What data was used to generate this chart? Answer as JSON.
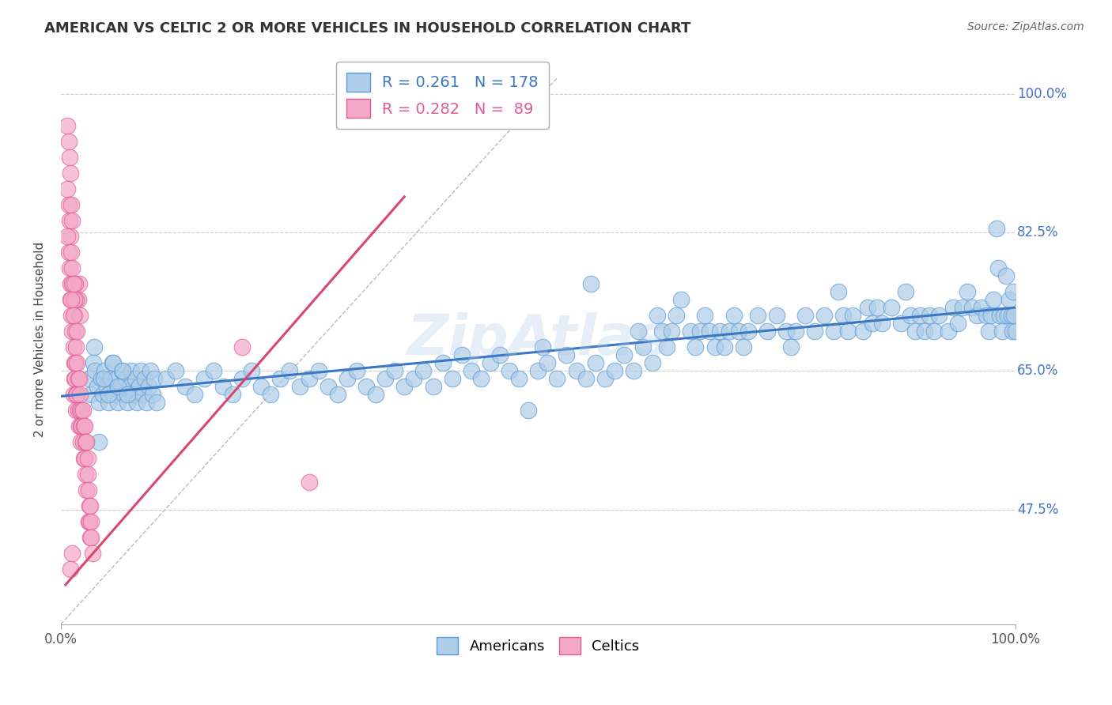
{
  "title": "AMERICAN VS CELTIC 2 OR MORE VEHICLES IN HOUSEHOLD CORRELATION CHART",
  "source": "Source: ZipAtlas.com",
  "ylabel": "2 or more Vehicles in Household",
  "xlim": [
    0,
    1.0
  ],
  "ylim": [
    0.33,
    1.05
  ],
  "y_ticks": [
    0.475,
    0.65,
    0.825,
    1.0
  ],
  "y_tick_labels": [
    "47.5%",
    "65.0%",
    "82.5%",
    "100.0%"
  ],
  "legend_blue_r": "R = 0.261",
  "legend_blue_n": "N = 178",
  "legend_pink_r": "R = 0.282",
  "legend_pink_n": "N =  89",
  "blue_color": "#aecde8",
  "pink_color": "#f4a8c7",
  "blue_edge_color": "#5b9bd5",
  "pink_edge_color": "#e05c96",
  "blue_line_color": "#3b78c3",
  "pink_line_color": "#d9476e",
  "watermark": "ZipAtlas",
  "blue_scatter": [
    [
      0.03,
      0.64
    ],
    [
      0.032,
      0.62
    ],
    [
      0.034,
      0.66
    ],
    [
      0.036,
      0.65
    ],
    [
      0.038,
      0.63
    ],
    [
      0.04,
      0.61
    ],
    [
      0.042,
      0.64
    ],
    [
      0.044,
      0.62
    ],
    [
      0.046,
      0.65
    ],
    [
      0.048,
      0.63
    ],
    [
      0.05,
      0.61
    ],
    [
      0.052,
      0.64
    ],
    [
      0.054,
      0.66
    ],
    [
      0.056,
      0.62
    ],
    [
      0.058,
      0.64
    ],
    [
      0.06,
      0.61
    ],
    [
      0.062,
      0.63
    ],
    [
      0.064,
      0.65
    ],
    [
      0.066,
      0.62
    ],
    [
      0.068,
      0.64
    ],
    [
      0.07,
      0.61
    ],
    [
      0.072,
      0.63
    ],
    [
      0.074,
      0.65
    ],
    [
      0.076,
      0.62
    ],
    [
      0.078,
      0.64
    ],
    [
      0.08,
      0.61
    ],
    [
      0.082,
      0.63
    ],
    [
      0.084,
      0.65
    ],
    [
      0.086,
      0.62
    ],
    [
      0.088,
      0.64
    ],
    [
      0.09,
      0.61
    ],
    [
      0.092,
      0.63
    ],
    [
      0.094,
      0.65
    ],
    [
      0.096,
      0.62
    ],
    [
      0.098,
      0.64
    ],
    [
      0.1,
      0.61
    ],
    [
      0.11,
      0.64
    ],
    [
      0.12,
      0.65
    ],
    [
      0.13,
      0.63
    ],
    [
      0.14,
      0.62
    ],
    [
      0.15,
      0.64
    ],
    [
      0.16,
      0.65
    ],
    [
      0.17,
      0.63
    ],
    [
      0.18,
      0.62
    ],
    [
      0.19,
      0.64
    ],
    [
      0.2,
      0.65
    ],
    [
      0.21,
      0.63
    ],
    [
      0.22,
      0.62
    ],
    [
      0.23,
      0.64
    ],
    [
      0.24,
      0.65
    ],
    [
      0.25,
      0.63
    ],
    [
      0.26,
      0.64
    ],
    [
      0.27,
      0.65
    ],
    [
      0.28,
      0.63
    ],
    [
      0.29,
      0.62
    ],
    [
      0.3,
      0.64
    ],
    [
      0.31,
      0.65
    ],
    [
      0.32,
      0.63
    ],
    [
      0.33,
      0.62
    ],
    [
      0.34,
      0.64
    ],
    [
      0.35,
      0.65
    ],
    [
      0.36,
      0.63
    ],
    [
      0.37,
      0.64
    ],
    [
      0.38,
      0.65
    ],
    [
      0.39,
      0.63
    ],
    [
      0.4,
      0.66
    ],
    [
      0.41,
      0.64
    ],
    [
      0.42,
      0.67
    ],
    [
      0.43,
      0.65
    ],
    [
      0.44,
      0.64
    ],
    [
      0.45,
      0.66
    ],
    [
      0.46,
      0.67
    ],
    [
      0.47,
      0.65
    ],
    [
      0.48,
      0.64
    ],
    [
      0.49,
      0.6
    ],
    [
      0.5,
      0.65
    ],
    [
      0.505,
      0.68
    ],
    [
      0.51,
      0.66
    ],
    [
      0.52,
      0.64
    ],
    [
      0.53,
      0.67
    ],
    [
      0.54,
      0.65
    ],
    [
      0.55,
      0.64
    ],
    [
      0.555,
      0.76
    ],
    [
      0.56,
      0.66
    ],
    [
      0.57,
      0.64
    ],
    [
      0.58,
      0.65
    ],
    [
      0.59,
      0.67
    ],
    [
      0.6,
      0.65
    ],
    [
      0.605,
      0.7
    ],
    [
      0.61,
      0.68
    ],
    [
      0.62,
      0.66
    ],
    [
      0.625,
      0.72
    ],
    [
      0.63,
      0.7
    ],
    [
      0.635,
      0.68
    ],
    [
      0.64,
      0.7
    ],
    [
      0.645,
      0.72
    ],
    [
      0.65,
      0.74
    ],
    [
      0.66,
      0.7
    ],
    [
      0.665,
      0.68
    ],
    [
      0.67,
      0.7
    ],
    [
      0.675,
      0.72
    ],
    [
      0.68,
      0.7
    ],
    [
      0.685,
      0.68
    ],
    [
      0.69,
      0.7
    ],
    [
      0.695,
      0.68
    ],
    [
      0.7,
      0.7
    ],
    [
      0.705,
      0.72
    ],
    [
      0.71,
      0.7
    ],
    [
      0.715,
      0.68
    ],
    [
      0.72,
      0.7
    ],
    [
      0.73,
      0.72
    ],
    [
      0.74,
      0.7
    ],
    [
      0.75,
      0.72
    ],
    [
      0.76,
      0.7
    ],
    [
      0.765,
      0.68
    ],
    [
      0.77,
      0.7
    ],
    [
      0.78,
      0.72
    ],
    [
      0.79,
      0.7
    ],
    [
      0.8,
      0.72
    ],
    [
      0.81,
      0.7
    ],
    [
      0.815,
      0.75
    ],
    [
      0.82,
      0.72
    ],
    [
      0.825,
      0.7
    ],
    [
      0.83,
      0.72
    ],
    [
      0.84,
      0.7
    ],
    [
      0.845,
      0.73
    ],
    [
      0.85,
      0.71
    ],
    [
      0.855,
      0.73
    ],
    [
      0.86,
      0.71
    ],
    [
      0.87,
      0.73
    ],
    [
      0.88,
      0.71
    ],
    [
      0.885,
      0.75
    ],
    [
      0.89,
      0.72
    ],
    [
      0.895,
      0.7
    ],
    [
      0.9,
      0.72
    ],
    [
      0.905,
      0.7
    ],
    [
      0.91,
      0.72
    ],
    [
      0.915,
      0.7
    ],
    [
      0.92,
      0.72
    ],
    [
      0.93,
      0.7
    ],
    [
      0.935,
      0.73
    ],
    [
      0.94,
      0.71
    ],
    [
      0.945,
      0.73
    ],
    [
      0.95,
      0.75
    ],
    [
      0.955,
      0.73
    ],
    [
      0.96,
      0.72
    ],
    [
      0.965,
      0.73
    ],
    [
      0.97,
      0.72
    ],
    [
      0.972,
      0.7
    ],
    [
      0.975,
      0.72
    ],
    [
      0.977,
      0.74
    ],
    [
      0.98,
      0.83
    ],
    [
      0.982,
      0.78
    ],
    [
      0.984,
      0.72
    ],
    [
      0.986,
      0.7
    ],
    [
      0.988,
      0.72
    ],
    [
      0.99,
      0.77
    ],
    [
      0.992,
      0.72
    ],
    [
      0.994,
      0.74
    ],
    [
      0.996,
      0.72
    ],
    [
      0.997,
      0.7
    ],
    [
      0.998,
      0.75
    ],
    [
      0.999,
      0.72
    ],
    [
      1.0,
      0.7
    ],
    [
      0.035,
      0.68
    ],
    [
      0.04,
      0.56
    ],
    [
      0.045,
      0.64
    ],
    [
      0.05,
      0.62
    ],
    [
      0.055,
      0.66
    ],
    [
      0.06,
      0.63
    ],
    [
      0.065,
      0.65
    ],
    [
      0.07,
      0.62
    ]
  ],
  "pink_scatter": [
    [
      0.007,
      0.96
    ],
    [
      0.008,
      0.94
    ],
    [
      0.009,
      0.92
    ],
    [
      0.01,
      0.9
    ],
    [
      0.007,
      0.88
    ],
    [
      0.008,
      0.86
    ],
    [
      0.009,
      0.84
    ],
    [
      0.01,
      0.82
    ],
    [
      0.011,
      0.86
    ],
    [
      0.012,
      0.84
    ],
    [
      0.008,
      0.8
    ],
    [
      0.009,
      0.78
    ],
    [
      0.007,
      0.82
    ],
    [
      0.01,
      0.76
    ],
    [
      0.011,
      0.8
    ],
    [
      0.01,
      0.74
    ],
    [
      0.011,
      0.72
    ],
    [
      0.012,
      0.7
    ],
    [
      0.013,
      0.74
    ],
    [
      0.014,
      0.72
    ],
    [
      0.012,
      0.76
    ],
    [
      0.013,
      0.68
    ],
    [
      0.014,
      0.66
    ],
    [
      0.015,
      0.7
    ],
    [
      0.016,
      0.68
    ],
    [
      0.014,
      0.64
    ],
    [
      0.015,
      0.66
    ],
    [
      0.013,
      0.62
    ],
    [
      0.015,
      0.64
    ],
    [
      0.016,
      0.62
    ],
    [
      0.017,
      0.66
    ],
    [
      0.018,
      0.64
    ],
    [
      0.016,
      0.6
    ],
    [
      0.017,
      0.62
    ],
    [
      0.018,
      0.6
    ],
    [
      0.019,
      0.64
    ],
    [
      0.02,
      0.62
    ],
    [
      0.019,
      0.58
    ],
    [
      0.02,
      0.6
    ],
    [
      0.021,
      0.58
    ],
    [
      0.022,
      0.6
    ],
    [
      0.021,
      0.56
    ],
    [
      0.022,
      0.58
    ],
    [
      0.023,
      0.6
    ],
    [
      0.024,
      0.58
    ],
    [
      0.023,
      0.56
    ],
    [
      0.024,
      0.54
    ],
    [
      0.025,
      0.58
    ],
    [
      0.026,
      0.56
    ],
    [
      0.025,
      0.54
    ],
    [
      0.026,
      0.52
    ],
    [
      0.027,
      0.56
    ],
    [
      0.028,
      0.54
    ],
    [
      0.027,
      0.5
    ],
    [
      0.028,
      0.52
    ],
    [
      0.029,
      0.5
    ],
    [
      0.03,
      0.48
    ],
    [
      0.029,
      0.46
    ],
    [
      0.03,
      0.46
    ],
    [
      0.031,
      0.48
    ],
    [
      0.032,
      0.46
    ],
    [
      0.031,
      0.44
    ],
    [
      0.032,
      0.44
    ],
    [
      0.033,
      0.42
    ],
    [
      0.01,
      0.4
    ],
    [
      0.012,
      0.42
    ],
    [
      0.018,
      0.74
    ],
    [
      0.019,
      0.76
    ],
    [
      0.02,
      0.72
    ],
    [
      0.017,
      0.7
    ],
    [
      0.016,
      0.74
    ],
    [
      0.015,
      0.76
    ],
    [
      0.014,
      0.74
    ],
    [
      0.013,
      0.76
    ],
    [
      0.012,
      0.78
    ],
    [
      0.011,
      0.74
    ],
    [
      0.013,
      0.72
    ],
    [
      0.19,
      0.68
    ],
    [
      0.26,
      0.51
    ]
  ],
  "blue_regression": {
    "x_start": 0.0,
    "y_start": 0.618,
    "x_end": 1.0,
    "y_end": 0.73
  },
  "pink_regression": {
    "x_start": 0.005,
    "y_start": 0.38,
    "x_end": 0.36,
    "y_end": 0.87
  },
  "ref_line": {
    "x_start": 0.0,
    "y_start": 0.33,
    "x_end": 0.52,
    "y_end": 1.02
  }
}
